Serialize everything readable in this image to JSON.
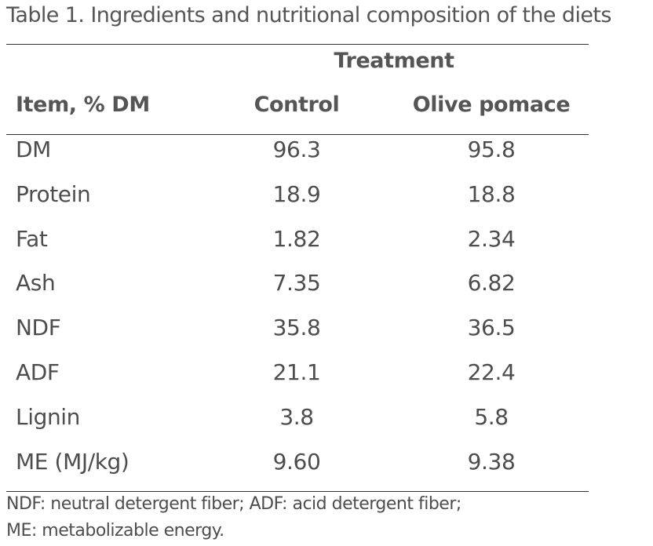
{
  "caption": "Table 1. Ingredients and nutritional composition of the diets",
  "table": {
    "group_header": "Treatment",
    "columns": [
      "Item, % DM",
      "Control",
      "Olive pomace"
    ],
    "rows": [
      [
        "DM",
        "96.3",
        "95.8"
      ],
      [
        "Protein",
        "18.9",
        "18.8"
      ],
      [
        "Fat",
        "1.82",
        "2.34"
      ],
      [
        "Ash",
        "7.35",
        "6.82"
      ],
      [
        "NDF",
        "35.8",
        "36.5"
      ],
      [
        "ADF",
        "21.1",
        "22.4"
      ],
      [
        "Lignin",
        "3.8",
        "5.8"
      ],
      [
        "ME (MJ/kg)",
        "9.60",
        "9.38"
      ]
    ]
  },
  "footnote": {
    "line1": "NDF: neutral detergent fiber; ADF: acid detergent fiber;",
    "line2": "ME: metabolizable energy."
  }
}
